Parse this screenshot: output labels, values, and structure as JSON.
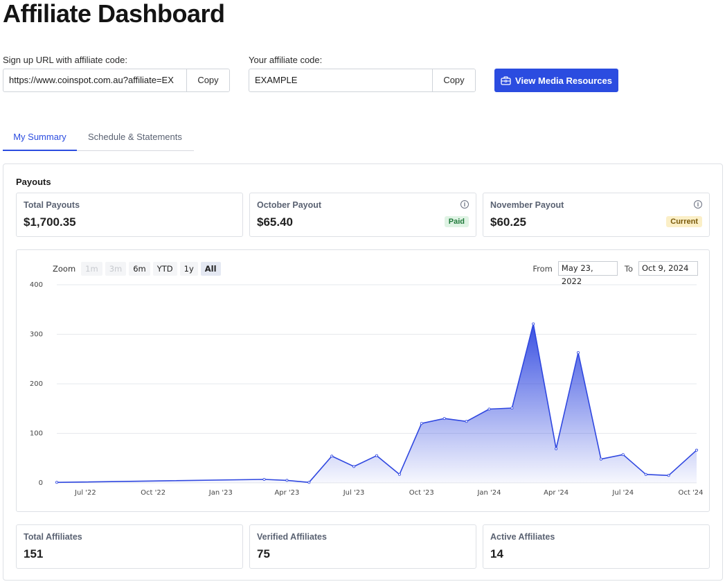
{
  "header": {
    "title": "Affiliate Dashboard"
  },
  "signup": {
    "label": "Sign up URL with affiliate code:",
    "value": "https://www.coinspot.com.au?affiliate=EX",
    "copy_label": "Copy"
  },
  "code": {
    "label": "Your affiliate code:",
    "value": "EXAMPLE",
    "copy_label": "Copy"
  },
  "media_button": {
    "label": "View Media Resources",
    "icon": "briefcase-icon"
  },
  "tabs": [
    {
      "label": "My Summary",
      "active": true
    },
    {
      "label": "Schedule & Statements",
      "active": false
    }
  ],
  "payouts": {
    "title": "Payouts",
    "cards": [
      {
        "label": "Total Payouts",
        "value": "$1,700.35"
      },
      {
        "label": "October Payout",
        "value": "$65.40",
        "badge": "Paid"
      },
      {
        "label": "November Payout",
        "value": "$60.25",
        "badge": "Current"
      }
    ]
  },
  "zoom": {
    "label": "Zoom",
    "options": [
      "1m",
      "3m",
      "6m",
      "YTD",
      "1y",
      "All"
    ],
    "disabled": [
      "1m",
      "3m"
    ],
    "selected": "All"
  },
  "range": {
    "from_label": "From",
    "from_value": "May 23, 2022",
    "to_label": "To",
    "to_value": "Oct 9, 2024"
  },
  "affiliates": {
    "cards": [
      {
        "label": "Total Affiliates",
        "value": "151"
      },
      {
        "label": "Verified Affiliates",
        "value": "75"
      },
      {
        "label": "Active Affiliates",
        "value": "14"
      }
    ]
  },
  "colors": {
    "accent": "#2b4ce0",
    "line": "#2f47e0"
  },
  "chart_data": {
    "type": "area",
    "x": [
      "2022-05-23",
      "2023-03-01",
      "2023-04-01",
      "2023-05-01",
      "2023-06-01",
      "2023-07-01",
      "2023-08-01",
      "2023-09-01",
      "2023-10-01",
      "2023-11-01",
      "2023-12-01",
      "2024-01-01",
      "2024-02-01",
      "2024-03-01",
      "2024-04-01",
      "2024-05-01",
      "2024-06-01",
      "2024-07-01",
      "2024-08-01",
      "2024-09-01",
      "2024-10-09"
    ],
    "values": [
      1,
      7,
      5,
      1,
      54,
      33,
      55,
      17,
      120,
      130,
      124,
      149,
      151,
      321,
      69,
      263,
      48,
      57,
      17,
      15,
      66
    ],
    "yticks": [
      0,
      100,
      200,
      300,
      400
    ],
    "ylim": [
      0,
      400
    ],
    "xticks": [
      {
        "date": "2022-07-01",
        "label": "Jul '22"
      },
      {
        "date": "2022-10-01",
        "label": "Oct '22"
      },
      {
        "date": "2023-01-01",
        "label": "Jan '23"
      },
      {
        "date": "2023-04-01",
        "label": "Apr '23"
      },
      {
        "date": "2023-07-01",
        "label": "Jul '23"
      },
      {
        "date": "2023-10-01",
        "label": "Oct '23"
      },
      {
        "date": "2024-01-01",
        "label": "Jan '24"
      },
      {
        "date": "2024-04-01",
        "label": "Apr '24"
      },
      {
        "date": "2024-07-01",
        "label": "Jul '24"
      },
      {
        "date": "2024-10-01",
        "label": "Oct '24"
      }
    ],
    "grid": true,
    "legend": "none"
  }
}
